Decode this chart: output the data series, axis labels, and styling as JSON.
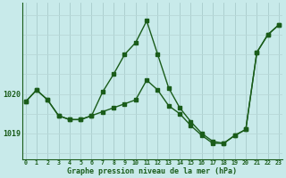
{
  "hours": [
    0,
    1,
    2,
    3,
    4,
    5,
    6,
    7,
    8,
    9,
    10,
    11,
    12,
    13,
    14,
    15,
    16,
    17,
    18,
    19,
    20,
    21,
    22,
    23
  ],
  "pressure_series1": [
    1019.8,
    1020.1,
    1019.85,
    1019.45,
    1019.35,
    1019.35,
    1019.45,
    1019.55,
    1019.65,
    1019.75,
    1019.85,
    1020.35,
    1020.1,
    1019.7,
    1019.5,
    1019.2,
    1018.95,
    1018.75,
    1018.75,
    1018.95,
    1019.1,
    1021.05,
    1021.5,
    1021.75
  ],
  "pressure_series2": [
    1019.8,
    1020.1,
    1019.85,
    1019.45,
    1019.35,
    1019.35,
    1019.45,
    1020.05,
    1020.5,
    1021.0,
    1021.3,
    1021.85,
    1021.0,
    1020.15,
    1019.65,
    1019.3,
    1019.0,
    1018.8,
    1018.75,
    1018.95,
    1019.1,
    1021.05,
    1021.5,
    1021.75
  ],
  "line_color": "#1a5c1a",
  "marker_color": "#1a5c1a",
  "bg_color": "#c8eaea",
  "grid_color_v": "#a8cccc",
  "grid_color_h": "#b8d8d8",
  "label_color": "#1a5c1a",
  "xlabel": "Graphe pression niveau de la mer (hPa)",
  "ytick_labels": [
    "1019",
    "1020"
  ],
  "ytick_vals": [
    1019.0,
    1020.0
  ],
  "ylim": [
    1018.35,
    1022.3
  ],
  "xlim": [
    -0.3,
    23.3
  ]
}
